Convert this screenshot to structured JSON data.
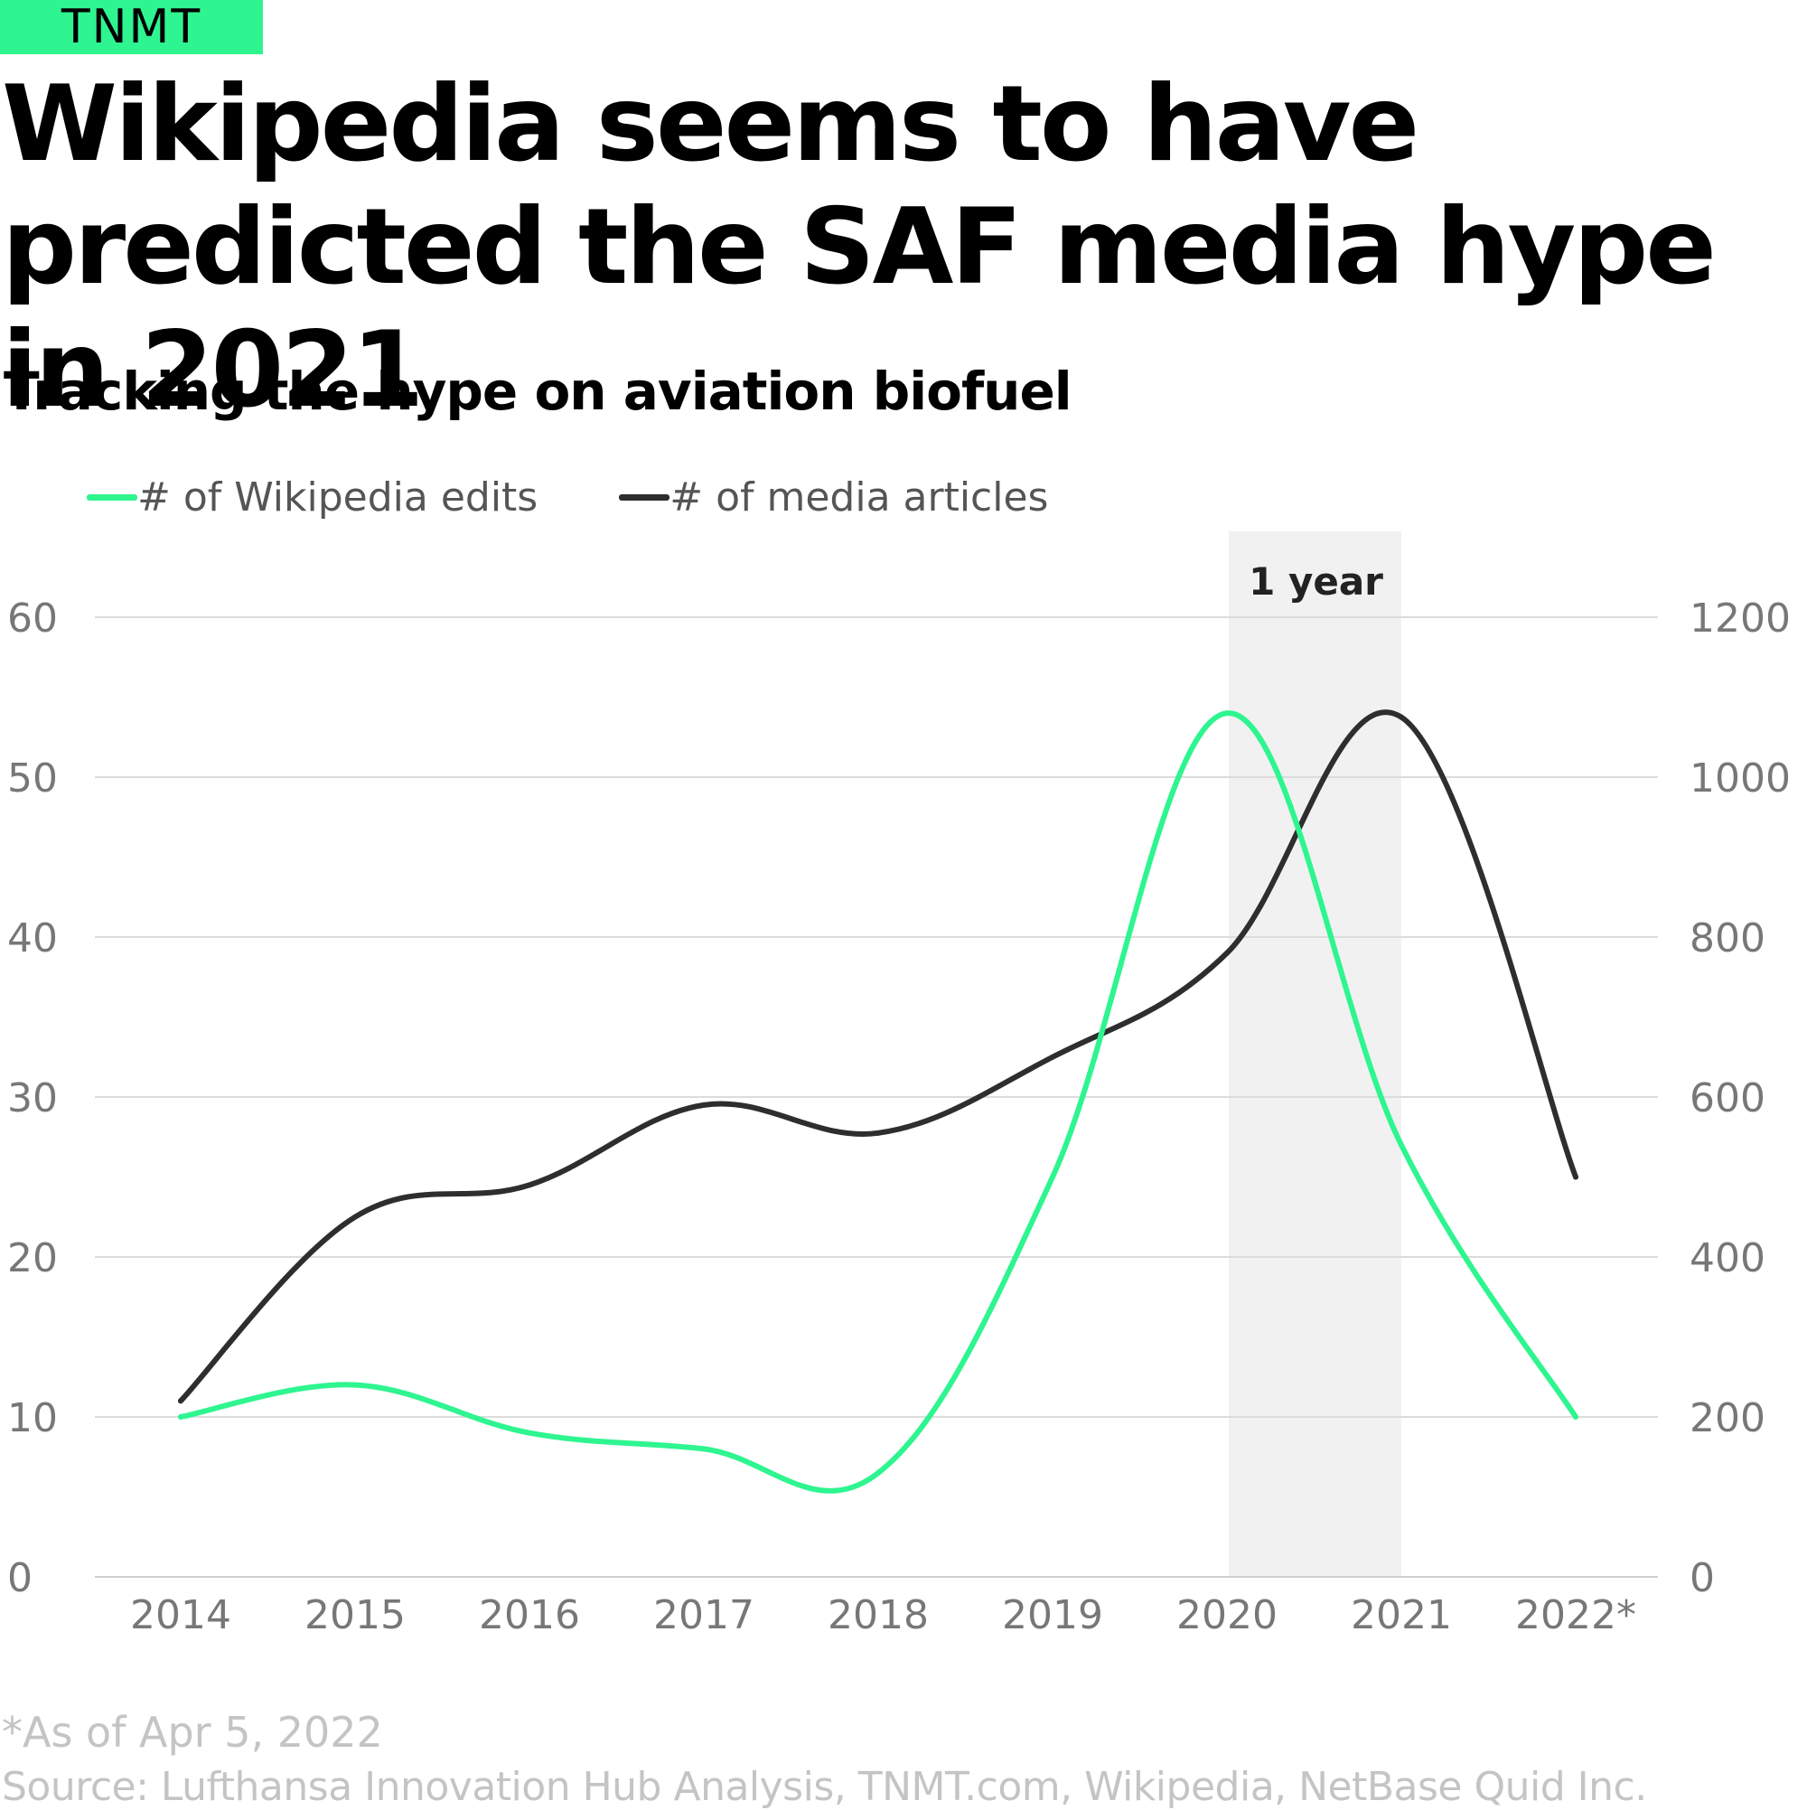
{
  "brand": {
    "logo_text": "TNMT",
    "accent": "#2ef590"
  },
  "header": {
    "title": "Wikipedia seems to have predicted the SAF media hype in 2021",
    "subtitle": "Tracking the hype on aviation biofuel"
  },
  "legend": [
    {
      "label": "# of Wikipedia edits",
      "color": "#2ef590"
    },
    {
      "label": "# of media articles",
      "color": "#2e2e30"
    }
  ],
  "chart_data": {
    "type": "line",
    "categories": [
      "2014",
      "2015",
      "2016",
      "2017",
      "2018",
      "2019",
      "2020",
      "2021",
      "2022*"
    ],
    "series": [
      {
        "name": "# of Wikipedia edits",
        "axis": "left",
        "color": "#2ef590",
        "values": [
          10,
          12,
          9,
          8,
          6.5,
          25,
          54,
          27,
          10
        ]
      },
      {
        "name": "# of media articles",
        "axis": "right",
        "color": "#2e2e30",
        "values": [
          220,
          450,
          490,
          590,
          555,
          650,
          780,
          1075,
          500
        ]
      }
    ],
    "y_left": {
      "min": 0,
      "max": 60,
      "ticks": [
        "0",
        "10",
        "20",
        "30",
        "40",
        "50",
        "60"
      ]
    },
    "y_right": {
      "min": 0,
      "max": 1200,
      "ticks": [
        "0",
        "200",
        "400",
        "600",
        "800",
        "1000",
        "1200"
      ]
    },
    "highlight": {
      "from": "2020",
      "to": "2021",
      "label": "1 year",
      "color": "#f1f1f1"
    },
    "grid": true,
    "legend_position": "top-left"
  },
  "footer": {
    "note": "*As of Apr 5, 2022",
    "source": "Source: Lufthansa Innovation Hub Analysis, TNMT.com, Wikipedia, NetBase Quid Inc."
  }
}
